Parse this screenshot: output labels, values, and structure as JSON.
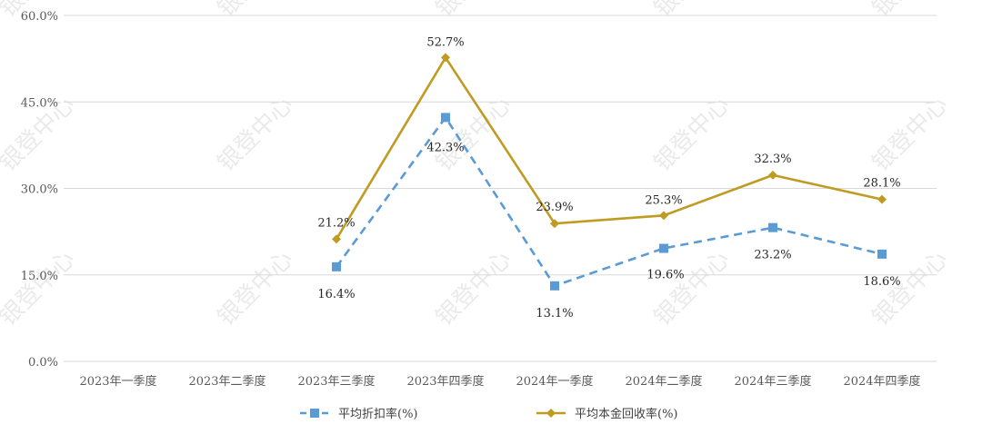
{
  "chart_data": {
    "type": "line",
    "categories": [
      "2023年一季度",
      "2023年二季度",
      "2023年三季度",
      "2023年四季度",
      "2024年一季度",
      "2024年二季度",
      "2024年三季度",
      "2024年四季度"
    ],
    "ylim": [
      0,
      60
    ],
    "yticks": [
      "0.0%",
      "15.0%",
      "30.0%",
      "45.0%",
      "60.0%"
    ],
    "ytick_values": [
      0,
      15,
      30,
      45,
      60
    ],
    "grid": true,
    "legend_position": "bottom",
    "series": [
      {
        "name": "平均折扣率(%)",
        "values": [
          null,
          null,
          16.4,
          42.3,
          13.1,
          19.6,
          23.2,
          18.6
        ],
        "labels": [
          "",
          "",
          "16.4%",
          "42.3%",
          "13.1%",
          "19.6%",
          "23.2%",
          "18.6%"
        ],
        "color": "#5b9bd5",
        "line_style": "dashed",
        "marker": "square"
      },
      {
        "name": "平均本金回收率(%)",
        "values": [
          null,
          null,
          21.2,
          52.7,
          23.9,
          25.3,
          32.3,
          28.1
        ],
        "labels": [
          "",
          "",
          "21.2%",
          "52.7%",
          "23.9%",
          "25.3%",
          "32.3%",
          "28.1%"
        ],
        "color": "#bf9b22",
        "line_style": "solid",
        "marker": "diamond"
      }
    ]
  },
  "watermark": "银登中心"
}
